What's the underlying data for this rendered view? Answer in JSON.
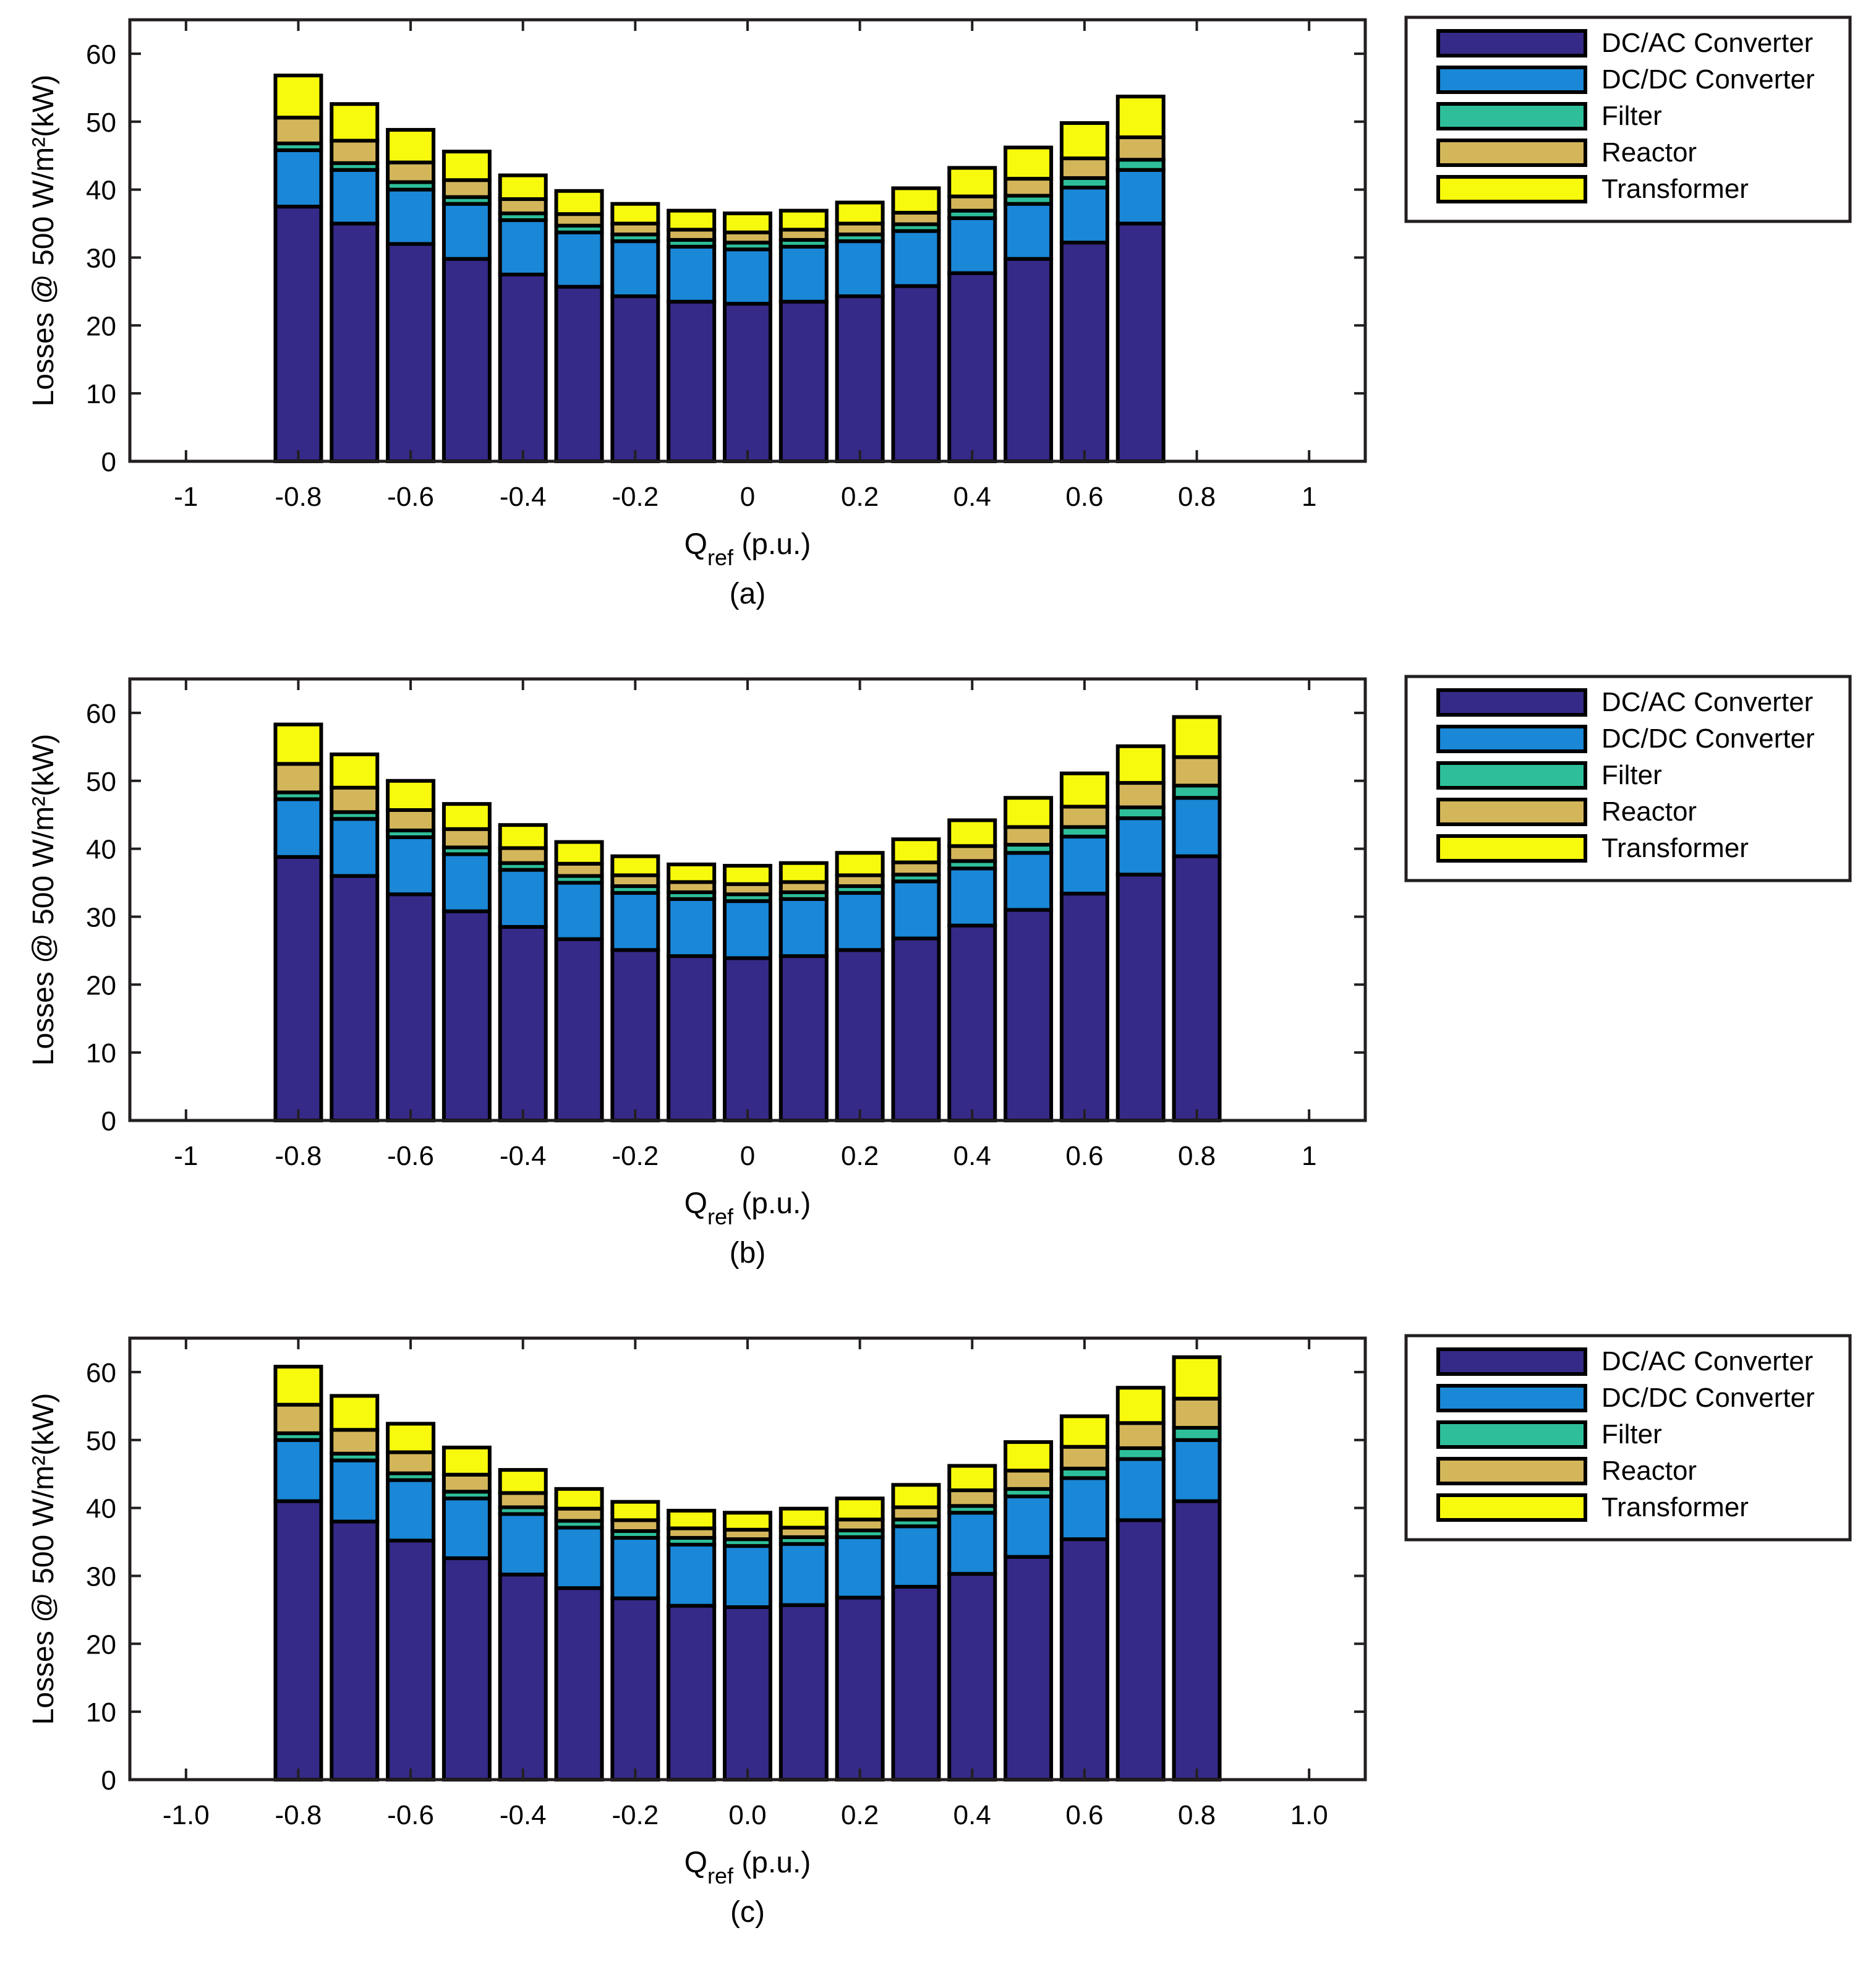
{
  "colors": {
    "DC/AC Converter": "#352a87",
    "DC/DC Converter": "#1a87d7",
    "Filter": "#2ebf9a",
    "Reactor": "#d4b65a",
    "Transformer": "#f8fa0d"
  },
  "legend_entries": [
    "DC/AC Converter",
    "DC/DC Converter",
    "Filter",
    "Reactor",
    "Transformer"
  ],
  "chart_data": [
    {
      "type": "bar",
      "stacked": true,
      "caption": "(a)",
      "xlabel_main": "Q",
      "xlabel_sub": "ref",
      "xlabel_tail": " (p.u.)",
      "ylabel": "Losses @ 500 W/m²(kW)",
      "xlim": [
        -1.1,
        1.1
      ],
      "ylim": [
        0,
        65
      ],
      "xticks": [
        -1,
        -0.8,
        -0.6,
        -0.4,
        -0.2,
        0,
        0.2,
        0.4,
        0.6,
        0.8,
        1
      ],
      "xtick_labels": [
        "-1",
        "-0.8",
        "-0.6",
        "-0.4",
        "-0.2",
        "0",
        "0.2",
        "0.4",
        "0.6",
        "0.8",
        "1"
      ],
      "yticks": [
        0,
        10,
        20,
        30,
        40,
        50,
        60
      ],
      "ytick_labels": [
        "0",
        "10",
        "20",
        "30",
        "40",
        "50",
        "60"
      ],
      "grid": false,
      "legend_position": "right",
      "x": [
        -0.8,
        -0.7,
        -0.6,
        -0.5,
        -0.4,
        -0.3,
        -0.2,
        -0.1,
        0,
        0.1,
        0.2,
        0.3,
        0.4,
        0.5,
        0.6,
        0.7
      ],
      "series": [
        {
          "name": "DC/AC Converter",
          "values": [
            37.5,
            35,
            32,
            29.8,
            27.5,
            25.7,
            24.3,
            23.5,
            23.2,
            23.5,
            24.3,
            25.8,
            27.7,
            29.8,
            32.2,
            35
          ]
        },
        {
          "name": "DC/DC Converter",
          "values": [
            8.3,
            7.9,
            8.0,
            8.1,
            8.0,
            8.0,
            8.1,
            8.1,
            8.0,
            8.1,
            8.1,
            8.1,
            8.1,
            8.1,
            8.1,
            7.9
          ]
        },
        {
          "name": "Filter",
          "values": [
            1.0,
            1.0,
            1.1,
            1.0,
            1.0,
            1.0,
            1.0,
            1.0,
            1.0,
            1.0,
            1.0,
            1.0,
            1.1,
            1.2,
            1.4,
            1.5
          ]
        },
        {
          "name": "Reactor",
          "values": [
            3.8,
            3.3,
            2.9,
            2.5,
            2.1,
            1.7,
            1.6,
            1.5,
            1.5,
            1.5,
            1.6,
            1.7,
            2.1,
            2.5,
            2.9,
            3.3
          ]
        },
        {
          "name": "Transformer",
          "values": [
            6.2,
            5.4,
            4.8,
            4.2,
            3.5,
            3.4,
            2.9,
            2.8,
            2.8,
            2.8,
            3.1,
            3.6,
            4.2,
            4.6,
            5.2,
            6.0
          ]
        }
      ]
    },
    {
      "type": "bar",
      "stacked": true,
      "caption": "(b)",
      "xlabel_main": "Q",
      "xlabel_sub": "ref",
      "xlabel_tail": " (p.u.)",
      "ylabel": "Losses @ 500 W/m²(kW)",
      "xlim": [
        -1.1,
        1.1
      ],
      "ylim": [
        0,
        65
      ],
      "xticks": [
        -1,
        -0.8,
        -0.6,
        -0.4,
        -0.2,
        0,
        0.2,
        0.4,
        0.6,
        0.8,
        1
      ],
      "xtick_labels": [
        "-1",
        "-0.8",
        "-0.6",
        "-0.4",
        "-0.2",
        "0",
        "0.2",
        "0.4",
        "0.6",
        "0.8",
        "1"
      ],
      "yticks": [
        0,
        10,
        20,
        30,
        40,
        50,
        60
      ],
      "ytick_labels": [
        "0",
        "10",
        "20",
        "30",
        "40",
        "50",
        "60"
      ],
      "grid": false,
      "legend_position": "right",
      "x": [
        -0.8,
        -0.7,
        -0.6,
        -0.5,
        -0.4,
        -0.3,
        -0.2,
        -0.1,
        0,
        0.1,
        0.2,
        0.3,
        0.4,
        0.5,
        0.6,
        0.7,
        0.8
      ],
      "series": [
        {
          "name": "DC/AC Converter",
          "values": [
            38.8,
            36,
            33.3,
            30.8,
            28.5,
            26.7,
            25.1,
            24.2,
            23.9,
            24.2,
            25.1,
            26.8,
            28.7,
            31,
            33.4,
            36.2,
            38.9
          ]
        },
        {
          "name": "DC/DC Converter",
          "values": [
            8.5,
            8.4,
            8.4,
            8.4,
            8.4,
            8.3,
            8.4,
            8.4,
            8.4,
            8.4,
            8.4,
            8.4,
            8.4,
            8.4,
            8.4,
            8.3,
            8.6
          ]
        },
        {
          "name": "Filter",
          "values": [
            1.0,
            1.0,
            1.0,
            1.0,
            1.0,
            1.0,
            1.0,
            1.0,
            1.0,
            1.0,
            1.0,
            1.0,
            1.1,
            1.2,
            1.4,
            1.6,
            1.8
          ]
        },
        {
          "name": "Reactor",
          "values": [
            4.2,
            3.6,
            3.0,
            2.7,
            2.2,
            1.8,
            1.6,
            1.5,
            1.5,
            1.5,
            1.6,
            1.8,
            2.2,
            2.6,
            3.0,
            3.6,
            4.2
          ]
        },
        {
          "name": "Transformer",
          "values": [
            5.8,
            4.9,
            4.3,
            3.7,
            3.4,
            3.2,
            2.8,
            2.6,
            2.7,
            2.8,
            3.3,
            3.4,
            3.8,
            4.3,
            4.9,
            5.4,
            5.9
          ]
        }
      ]
    },
    {
      "type": "bar",
      "stacked": true,
      "caption": "(c)",
      "xlabel_main": "Q",
      "xlabel_sub": "ref",
      "xlabel_tail": " (p.u.)",
      "ylabel": "Losses @ 500 W/m²(kW)",
      "xlim": [
        -1.1,
        1.1
      ],
      "ylim": [
        0,
        65
      ],
      "xticks": [
        -1,
        -0.8,
        -0.6,
        -0.4,
        -0.2,
        0,
        0.2,
        0.4,
        0.6,
        0.8,
        1
      ],
      "xtick_labels": [
        "-1.0",
        "-0.8",
        "-0.6",
        "-0.4",
        "-0.2",
        "0.0",
        "0.2",
        "0.4",
        "0.6",
        "0.8",
        "1.0"
      ],
      "yticks": [
        0,
        10,
        20,
        30,
        40,
        50,
        60
      ],
      "ytick_labels": [
        "0",
        "10",
        "20",
        "30",
        "40",
        "50",
        "60"
      ],
      "grid": false,
      "legend_position": "right",
      "x": [
        -0.8,
        -0.7,
        -0.6,
        -0.5,
        -0.4,
        -0.3,
        -0.2,
        -0.1,
        0,
        0.1,
        0.2,
        0.3,
        0.4,
        0.5,
        0.6,
        0.7,
        0.8
      ],
      "series": [
        {
          "name": "DC/AC Converter",
          "values": [
            41,
            38,
            35.2,
            32.6,
            30.2,
            28.2,
            26.7,
            25.6,
            25.4,
            25.7,
            26.8,
            28.4,
            30.3,
            32.8,
            35.4,
            38.2,
            41
          ]
        },
        {
          "name": "DC/DC Converter",
          "values": [
            9.0,
            9.0,
            8.9,
            8.8,
            8.9,
            8.9,
            8.9,
            9.0,
            9.0,
            9.0,
            8.9,
            8.9,
            9.0,
            8.9,
            9.0,
            9.0,
            9.0
          ]
        },
        {
          "name": "Filter",
          "values": [
            1.0,
            1.0,
            1.0,
            1.0,
            1.0,
            1.0,
            1.0,
            1.0,
            1.0,
            1.0,
            1.0,
            1.0,
            1.0,
            1.1,
            1.4,
            1.6,
            1.8
          ]
        },
        {
          "name": "Reactor",
          "values": [
            4.2,
            3.5,
            3.1,
            2.5,
            2.1,
            1.8,
            1.6,
            1.4,
            1.4,
            1.4,
            1.6,
            1.8,
            2.3,
            2.7,
            3.2,
            3.7,
            4.3
          ]
        },
        {
          "name": "Transformer",
          "values": [
            5.6,
            5.0,
            4.2,
            4.0,
            3.4,
            2.9,
            2.7,
            2.6,
            2.5,
            2.8,
            3.1,
            3.3,
            3.6,
            4.2,
            4.5,
            5.2,
            6.1
          ]
        }
      ]
    }
  ]
}
